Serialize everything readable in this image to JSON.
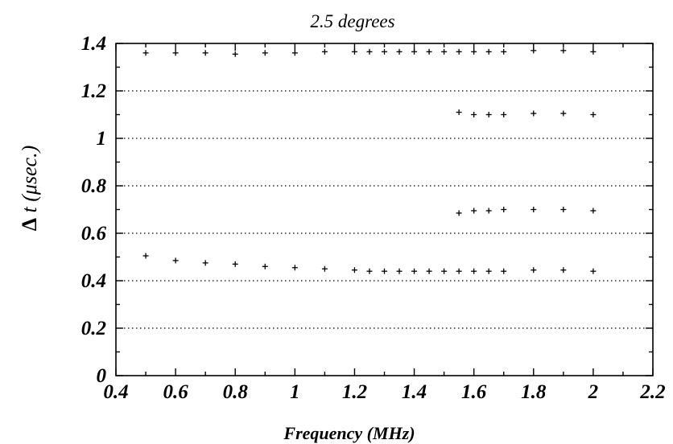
{
  "chart_data": {
    "type": "scatter",
    "title": "2.5 degrees",
    "xlabel": "Frequency (MHz)",
    "ylabel_symbol": "Δ",
    "ylabel_rest": " t (μsec.)",
    "xlim": [
      0.4,
      2.2
    ],
    "ylim": [
      0,
      1.4
    ],
    "x_ticks": [
      0.4,
      0.6,
      0.8,
      1.0,
      1.2,
      1.4,
      1.6,
      1.8,
      2.0,
      2.2
    ],
    "x_tick_labels": [
      "0.4",
      "0.6",
      "0.8",
      "1",
      "1.2",
      "1.4",
      "1.6",
      "1.8",
      "2",
      "2.2"
    ],
    "y_ticks": [
      0,
      0.2,
      0.4,
      0.6,
      0.8,
      1.0,
      1.2,
      1.4
    ],
    "y_tick_labels": [
      "0",
      "0.2",
      "0.4",
      "0.6",
      "0.8",
      "1",
      "1.2",
      "1.4"
    ],
    "x_minor_step": 0.1,
    "y_minor_step": 0.1,
    "grid": "horizontal dotted",
    "legend": "none",
    "marker": "plus",
    "series": [
      {
        "x": [
          0.5,
          0.6,
          0.7,
          0.8,
          0.9,
          1.0,
          1.1,
          1.2,
          1.25,
          1.3,
          1.35,
          1.4,
          1.45,
          1.5,
          1.55,
          1.6,
          1.65,
          1.7,
          1.8,
          1.9,
          2.0
        ],
        "y": [
          1.36,
          1.36,
          1.36,
          1.355,
          1.36,
          1.36,
          1.365,
          1.365,
          1.365,
          1.365,
          1.365,
          1.365,
          1.365,
          1.365,
          1.365,
          1.365,
          1.365,
          1.365,
          1.37,
          1.37,
          1.365
        ]
      },
      {
        "x": [
          1.55,
          1.6,
          1.65,
          1.7,
          1.8,
          1.9,
          2.0
        ],
        "y": [
          1.11,
          1.1,
          1.1,
          1.1,
          1.105,
          1.105,
          1.1
        ]
      },
      {
        "x": [
          1.55,
          1.6,
          1.65,
          1.7,
          1.8,
          1.9,
          2.0
        ],
        "y": [
          0.685,
          0.695,
          0.695,
          0.7,
          0.7,
          0.7,
          0.695
        ]
      },
      {
        "x": [
          0.5,
          0.6,
          0.7,
          0.8,
          0.9,
          1.0,
          1.1,
          1.2,
          1.25,
          1.3,
          1.35,
          1.4,
          1.45,
          1.5,
          1.55,
          1.6,
          1.65,
          1.7,
          1.8,
          1.9,
          2.0
        ],
        "y": [
          0.505,
          0.485,
          0.475,
          0.47,
          0.46,
          0.455,
          0.45,
          0.445,
          0.44,
          0.44,
          0.44,
          0.44,
          0.44,
          0.44,
          0.44,
          0.44,
          0.44,
          0.44,
          0.445,
          0.445,
          0.44
        ]
      }
    ]
  }
}
